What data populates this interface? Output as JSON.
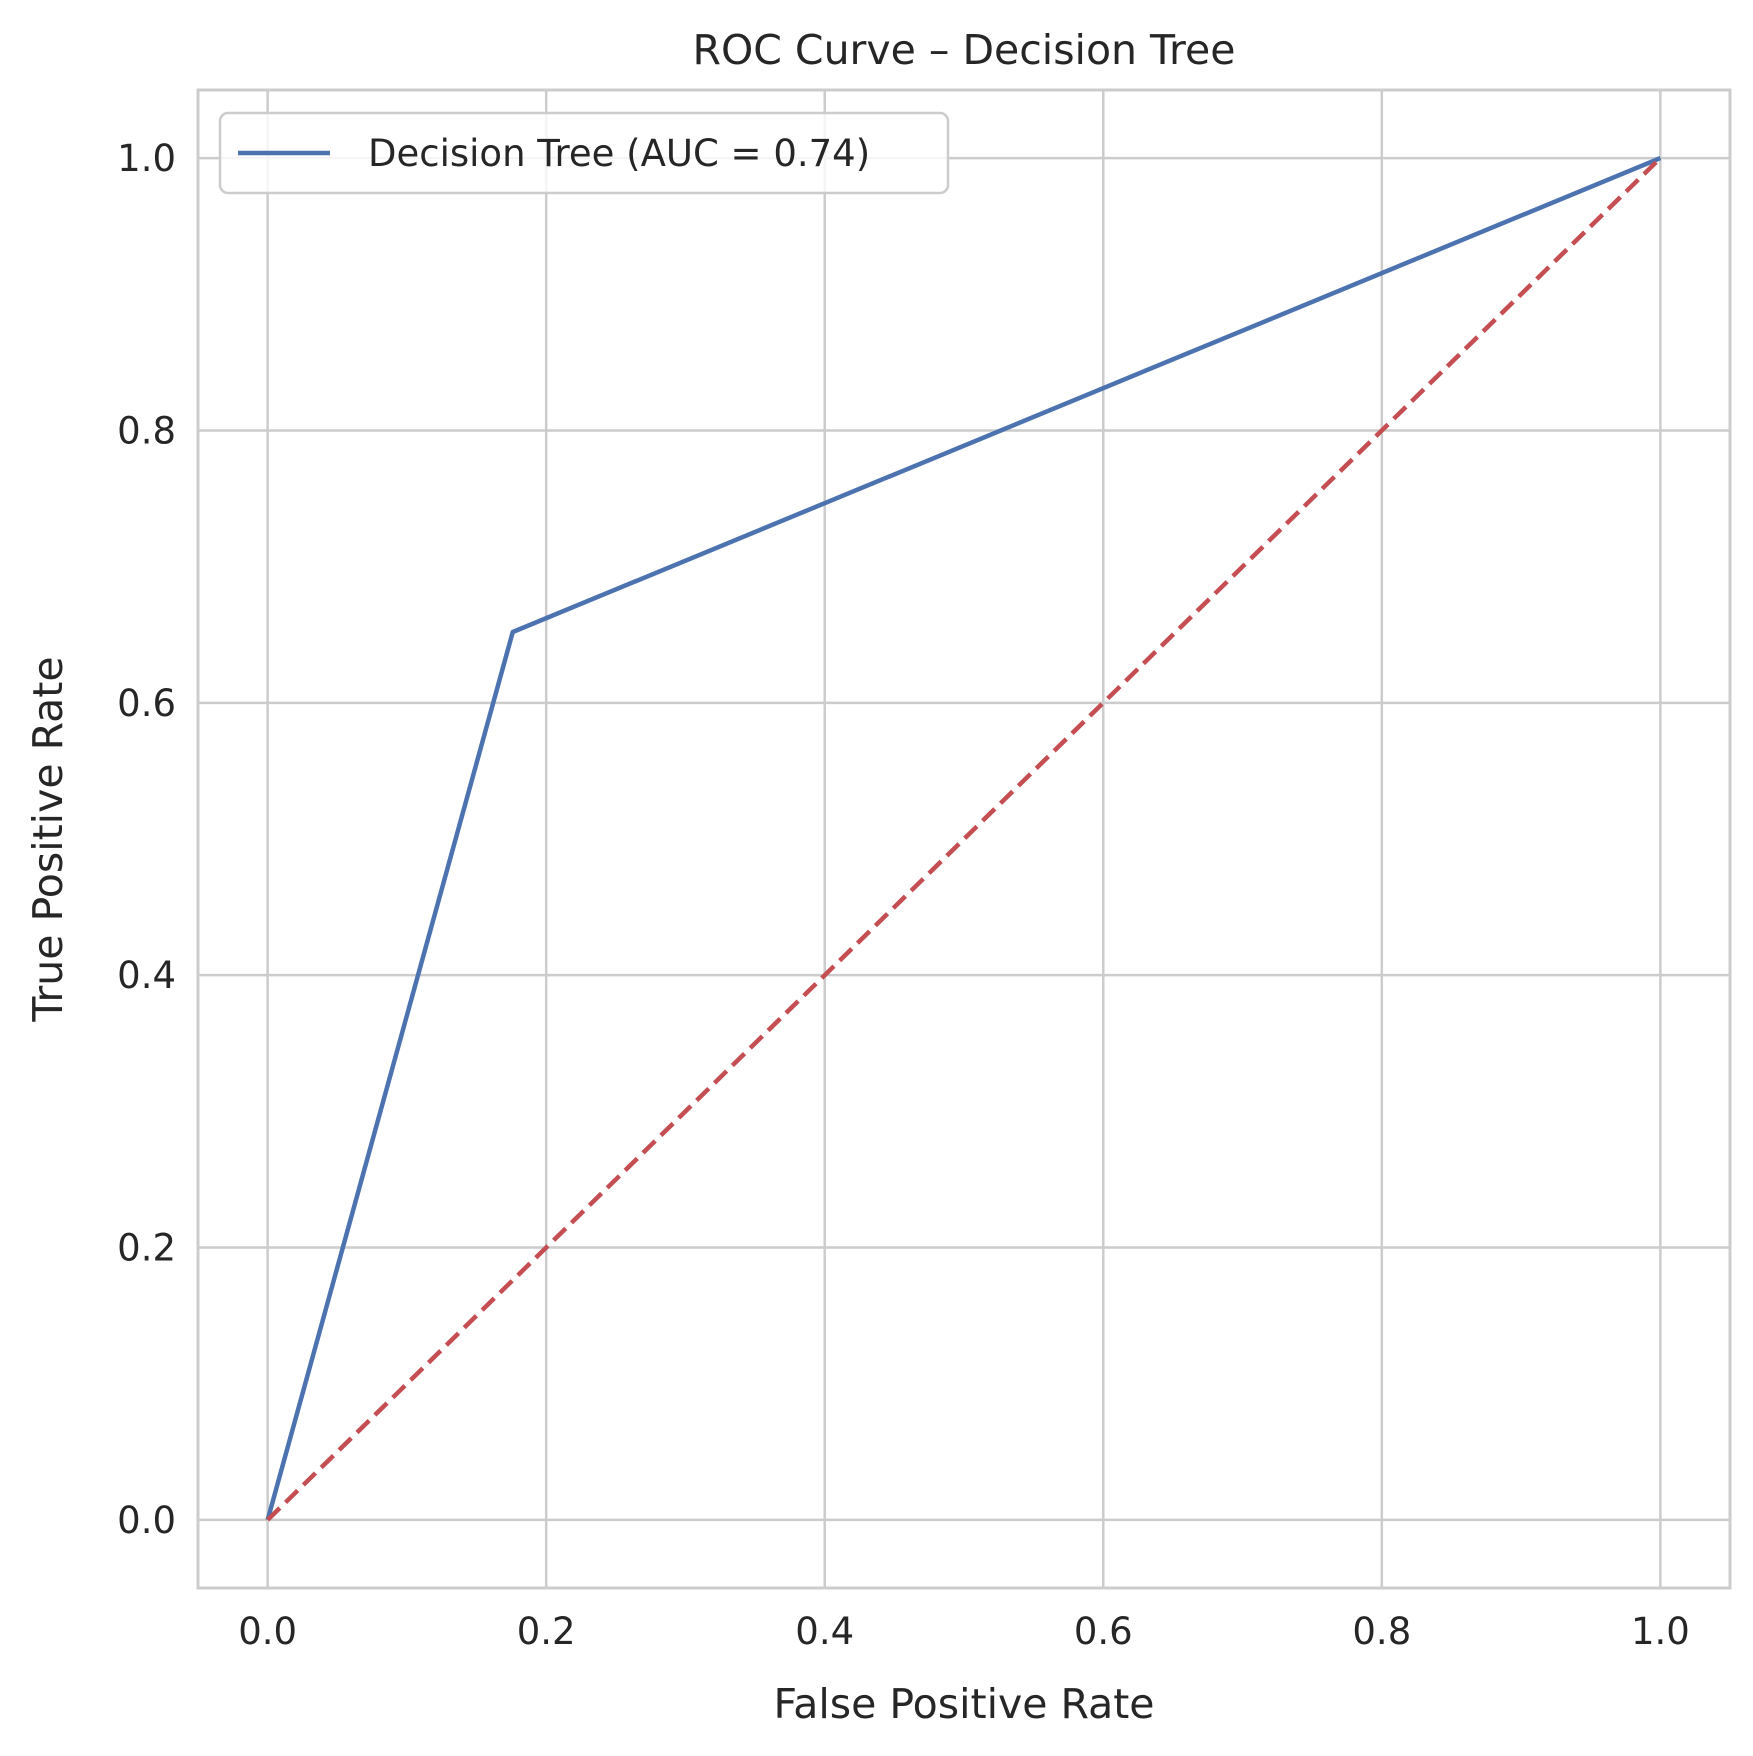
{
  "chart_data": {
    "type": "line",
    "title": "ROC Curve – Decision Tree",
    "xlabel": "False Positive Rate",
    "ylabel": "True Positive Rate",
    "xlim": [
      -0.05,
      1.05
    ],
    "ylim": [
      -0.05,
      1.05
    ],
    "x_ticks": [
      0.0,
      0.2,
      0.4,
      0.6,
      0.8,
      1.0
    ],
    "y_ticks": [
      0.0,
      0.2,
      0.4,
      0.6,
      0.8,
      1.0
    ],
    "x_tick_labels": [
      "0.0",
      "0.2",
      "0.4",
      "0.6",
      "0.8",
      "1.0"
    ],
    "y_tick_labels": [
      "0.0",
      "0.2",
      "0.4",
      "0.6",
      "0.8",
      "1.0"
    ],
    "grid": true,
    "legend_position": "upper-left",
    "series": [
      {
        "name": "Decision Tree (AUC = 0.74)",
        "color": "#4c72b0",
        "style": "solid",
        "x": [
          0.0,
          0.176,
          1.0
        ],
        "y": [
          0.0,
          0.652,
          1.0
        ]
      },
      {
        "color": "#c44e52",
        "style": "dashed",
        "x": [
          0.0,
          1.0
        ],
        "y": [
          0.0,
          1.0
        ]
      }
    ],
    "colors": {
      "grid": "#cccccc",
      "frame": "#cccccc",
      "text": "#262626",
      "background": "#ffffff"
    }
  }
}
